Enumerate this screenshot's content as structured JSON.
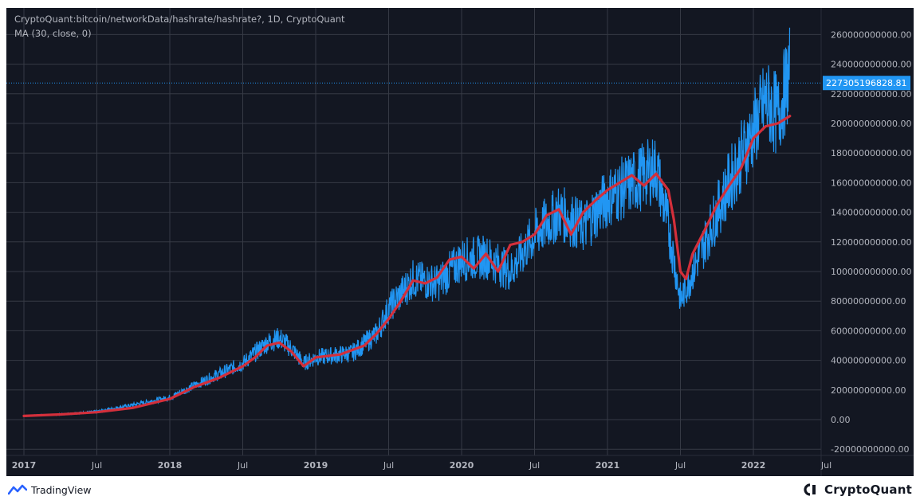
{
  "legend": {
    "line1": "CryptoQuant:bitcoin/networkData/hashrate/hashrate?, 1D, CryptoQuant",
    "line2": "MA (30, close, 0)"
  },
  "footer": {
    "tradingview": "TradingView",
    "cryptoquant": "CryptoQuant"
  },
  "colors": {
    "background": "#131722",
    "grid": "#363a45",
    "hashrate": "#2196f3",
    "ma": "#d32f3b",
    "price_label_bg": "#2196f3",
    "axis_text": "#b2b5be"
  },
  "chart_data": {
    "type": "line",
    "title": "CryptoQuant:bitcoin/networkData/hashrate/hashrate?, 1D, CryptoQuant",
    "ylim": [
      -20000000000,
      270000000000
    ],
    "y_ticks": [
      "260000000000.00",
      "240000000000.00",
      "220000000000.00",
      "200000000000.00",
      "180000000000.00",
      "160000000000.00",
      "140000000000.00",
      "120000000000.00",
      "100000000000.00",
      "80000000000.00",
      "60000000000.00",
      "40000000000.00",
      "20000000000.00",
      "0.00",
      "-20000000000.00"
    ],
    "x_ticks": [
      "2017",
      "Jul",
      "2018",
      "Jul",
      "2019",
      "Jul",
      "2020",
      "Jul",
      "2021",
      "Jul",
      "2022",
      "Jul"
    ],
    "last_value_label": "227305196828.81",
    "last_value": 227305196828.81,
    "grid": true,
    "series": [
      {
        "name": "hashrate",
        "values_note": "",
        "x": [
          "2017-01",
          "2017-04",
          "2017-07",
          "2017-10",
          "2018-01",
          "2018-04",
          "2018-07",
          "2018-09",
          "2018-10",
          "2018-11",
          "2018-12",
          "2019-01",
          "2019-04",
          "2019-06",
          "2019-07",
          "2019-09",
          "2019-11",
          "2020-01",
          "2020-03",
          "2020-05",
          "2020-07",
          "2020-09",
          "2020-11",
          "2021-01",
          "2021-03",
          "2021-05",
          "2021-06",
          "2021-07",
          "2021-09",
          "2021-11",
          "2022-01",
          "2022-02",
          "2022-03",
          "2022-04"
        ],
        "values": [
          2500000000.0,
          3500000000.0,
          5500000000.0,
          10000000000.0,
          15000000000.0,
          27000000000.0,
          38000000000.0,
          52000000000.0,
          55000000000.0,
          48000000000.0,
          38000000000.0,
          42000000000.0,
          45000000000.0,
          58000000000.0,
          75000000000.0,
          95000000000.0,
          92000000000.0,
          108000000000.0,
          110000000000.0,
          100000000000.0,
          125000000000.0,
          140000000000.0,
          130000000000.0,
          150000000000.0,
          160000000000.0,
          170000000000.0,
          130000000000.0,
          80000000000.0,
          120000000000.0,
          160000000000.0,
          195000000000.0,
          215000000000.0,
          205000000000.0,
          235000000000.0
        ]
      },
      {
        "name": "MA (30, close, 0)",
        "x": [
          "2017-01",
          "2017-04",
          "2017-07",
          "2017-10",
          "2018-01",
          "2018-03",
          "2018-05",
          "2018-07",
          "2018-08",
          "2018-09",
          "2018-10",
          "2018-11",
          "2018-12",
          "2019-01",
          "2019-03",
          "2019-05",
          "2019-06",
          "2019-07",
          "2019-08",
          "2019-09",
          "2019-10",
          "2019-11",
          "2019-12",
          "2020-01",
          "2020-02",
          "2020-03",
          "2020-04",
          "2020-05",
          "2020-06",
          "2020-07",
          "2020-08",
          "2020-09",
          "2020-10",
          "2020-11",
          "2020-12",
          "2021-01",
          "2021-02",
          "2021-03",
          "2021-04",
          "2021-05",
          "2021-06",
          "2021-06b",
          "2021-07",
          "2021-07b",
          "2021-08",
          "2021-09",
          "2021-10",
          "2021-11",
          "2021-12",
          "2022-01",
          "2022-02",
          "2022-03",
          "2022-04"
        ],
        "values": [
          2500000000.0,
          3500000000.0,
          5000000000.0,
          8000000000.0,
          14000000000.0,
          22000000000.0,
          28000000000.0,
          36000000000.0,
          42000000000.0,
          50000000000.0,
          52000000000.0,
          46000000000.0,
          36000000000.0,
          42000000000.0,
          44000000000.0,
          50000000000.0,
          58000000000.0,
          68000000000.0,
          80000000000.0,
          94000000000.0,
          92000000000.0,
          96000000000.0,
          108000000000.0,
          110000000000.0,
          102000000000.0,
          112000000000.0,
          100000000000.0,
          118000000000.0,
          120000000000.0,
          125000000000.0,
          138000000000.0,
          142000000000.0,
          125000000000.0,
          140000000000.0,
          148000000000.0,
          155000000000.0,
          160000000000.0,
          165000000000.0,
          158000000000.0,
          166000000000.0,
          155000000000.0,
          135000000000.0,
          100000000000.0,
          95000000000.0,
          112000000000.0,
          128000000000.0,
          145000000000.0,
          158000000000.0,
          170000000000.0,
          190000000000.0,
          198000000000.0,
          200000000000.0,
          205000000000.0
        ]
      }
    ]
  }
}
